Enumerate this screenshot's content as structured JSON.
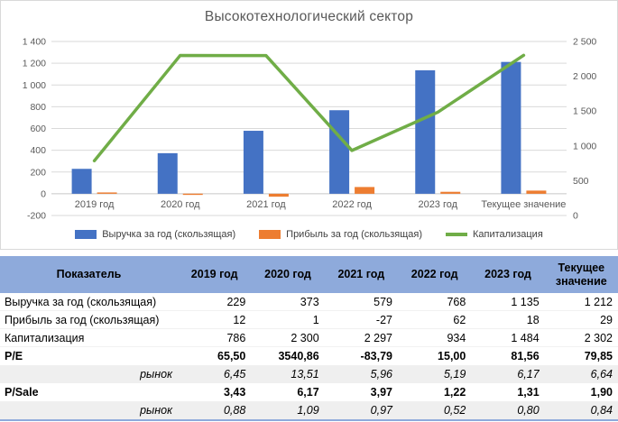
{
  "chart_data": {
    "type": "combo",
    "title": "Высокотехнологический сектор",
    "categories": [
      "2019 год",
      "2020 год",
      "2021 год",
      "2022 год",
      "2023 год",
      "Текущее значение"
    ],
    "series": [
      {
        "name": "Выручка за год (скользящая)",
        "type": "bar",
        "axis": "left",
        "color": "#4472C4",
        "values": [
          229,
          373,
          579,
          768,
          1135,
          1212
        ]
      },
      {
        "name": "Прибыль за год (скользящая)",
        "type": "bar",
        "axis": "left",
        "color": "#ED7D31",
        "values": [
          12,
          1,
          -27,
          62,
          18,
          29
        ]
      },
      {
        "name": "Капитализация",
        "type": "line",
        "axis": "right",
        "color": "#70AD47",
        "values": [
          786,
          2300,
          2297,
          934,
          1484,
          2302
        ]
      }
    ],
    "left_axis": {
      "min": -200,
      "max": 1400,
      "step": 200,
      "tick_labels": [
        "1 400",
        "1 200",
        "1 000",
        "800",
        "600",
        "400",
        "200",
        "0",
        "-200"
      ]
    },
    "right_axis": {
      "min": 0,
      "max": 2500,
      "step": 500,
      "tick_labels": [
        "2 500",
        "2 000",
        "1 500",
        "1 000",
        "500",
        "0"
      ]
    },
    "grid": true,
    "legend_position": "bottom",
    "colors": {
      "gridline": "#D9D9D9",
      "zero_axis": "#C6C6C6",
      "tick_text": "#595959"
    }
  },
  "table": {
    "header": [
      "Показатель",
      "2019 год",
      "2020 год",
      "2021 год",
      "2022 год",
      "2023 год",
      "Текущее значение"
    ],
    "rows": [
      {
        "label": "Выручка за год (скользящая)",
        "style": "normal",
        "values": [
          "229",
          "373",
          "579",
          "768",
          "1 135",
          "1 212"
        ]
      },
      {
        "label": "Прибыль за год (скользящая)",
        "style": "normal",
        "values": [
          "12",
          "1",
          "-27",
          "62",
          "18",
          "29"
        ]
      },
      {
        "label": "Капитализация",
        "style": "normal",
        "values": [
          "786",
          "2 300",
          "2 297",
          "934",
          "1 484",
          "2 302"
        ]
      },
      {
        "label": "P/E",
        "style": "bold",
        "values": [
          "65,50",
          "3540,86",
          "-83,79",
          "15,00",
          "81,56",
          "79,85"
        ]
      },
      {
        "label": "рынок",
        "style": "market",
        "values": [
          "6,45",
          "13,51",
          "5,96",
          "5,19",
          "6,17",
          "6,64"
        ]
      },
      {
        "label": "P/Sale",
        "style": "bold",
        "values": [
          "3,43",
          "6,17",
          "3,97",
          "1,22",
          "1,31",
          "1,90"
        ]
      },
      {
        "label": "рынок",
        "style": "market",
        "values": [
          "0,88",
          "1,09",
          "0,97",
          "0,52",
          "0,80",
          "0,84"
        ]
      }
    ],
    "colors": {
      "header_bg": "#8EAADB",
      "band_bg": "#EFEFEF",
      "bottom_border": "#8EAADB"
    }
  }
}
